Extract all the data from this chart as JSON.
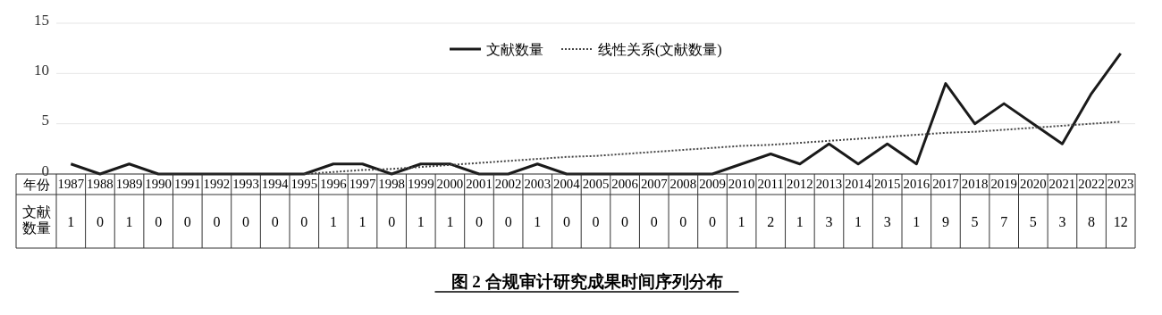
{
  "chart_data": {
    "type": "line",
    "title": "图 2 合规审计研究成果时间序列分布",
    "xlabel": "年份",
    "categories": [
      "1987",
      "1988",
      "1989",
      "1990",
      "1991",
      "1992",
      "1993",
      "1994",
      "1995",
      "1996",
      "1997",
      "1998",
      "1999",
      "2000",
      "2001",
      "2002",
      "2003",
      "2004",
      "2005",
      "2006",
      "2007",
      "2008",
      "2009",
      "2010",
      "2011",
      "2012",
      "2013",
      "2014",
      "2015",
      "2016",
      "2017",
      "2018",
      "2019",
      "2020",
      "2021",
      "2022",
      "2023"
    ],
    "series": [
      {
        "name": "文献数量",
        "color": "#1a1a1a",
        "line_style": "solid",
        "values": [
          1,
          0,
          1,
          0,
          0,
          0,
          0,
          0,
          0,
          1,
          1,
          0,
          1,
          1,
          0,
          0,
          1,
          0,
          0,
          0,
          0,
          0,
          0,
          1,
          2,
          1,
          3,
          1,
          3,
          1,
          9,
          5,
          7,
          5,
          3,
          8,
          12
        ],
        "value_labels": [
          "1",
          "0",
          "1",
          "0",
          "0",
          "0",
          "0",
          "0",
          "0",
          "1",
          "1",
          "0",
          "1",
          "1",
          "0",
          "0",
          "1",
          "0",
          "0",
          "0",
          "0",
          "0",
          "0",
          "1",
          "2",
          "1",
          "3",
          "1",
          "3",
          "1",
          "9",
          "5",
          "7",
          "5",
          "3",
          "8",
          "12"
        ]
      },
      {
        "name": "线性关系(文献数量)",
        "color": "#444444",
        "line_style": "dotted",
        "values": [
          null,
          null,
          null,
          null,
          null,
          null,
          null,
          null,
          0,
          0.2,
          0.4,
          0.5,
          0.7,
          0.9,
          1.1,
          1.3,
          1.5,
          1.7,
          1.8,
          2.0,
          2.2,
          2.4,
          2.6,
          2.8,
          2.9,
          3.1,
          3.3,
          3.5,
          3.7,
          3.9,
          4.1,
          4.2,
          4.4,
          4.6,
          4.8,
          5.0,
          5.2
        ]
      }
    ],
    "ylim": [
      0,
      15
    ],
    "yticks": [
      0,
      5,
      10,
      15
    ],
    "grid": "y",
    "legend": "top"
  }
}
